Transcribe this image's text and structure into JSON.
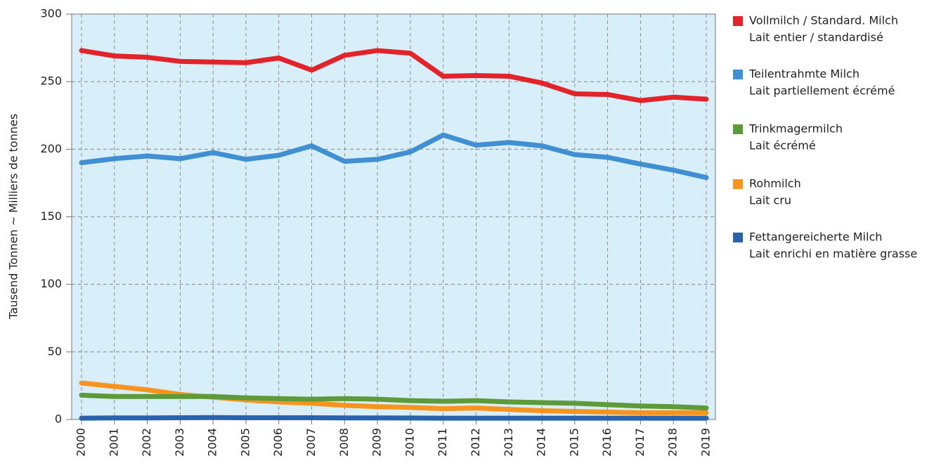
{
  "chart_data": {
    "type": "line",
    "y_label": "Tausend Tonnen  ~  Milliers de tonnes",
    "x": [
      "2000",
      "2001",
      "2002",
      "2003",
      "2004",
      "2005",
      "2006",
      "2007",
      "2008",
      "2009",
      "2010",
      "2011",
      "2012",
      "2013",
      "2014",
      "2015",
      "2016",
      "2017",
      "2018",
      "2019"
    ],
    "series": [
      {
        "name": "Vollmilch / Standard. Milch",
        "name_fr": "Lait entier / standardisé",
        "color": "#e3232a",
        "values": [
          273,
          269,
          268,
          265,
          264.5,
          264,
          267.5,
          258.5,
          269.5,
          273,
          271,
          254,
          254.5,
          254,
          249,
          241,
          240.5,
          236,
          238.5,
          237
        ]
      },
      {
        "name": "Teilentrahmte Milch",
        "name_fr": "Lait partiellement écrémé",
        "color": "#3f8fd2",
        "values": [
          190,
          193,
          195,
          193,
          197.5,
          192.5,
          195.5,
          202.5,
          191,
          192.5,
          198,
          210.5,
          203,
          205,
          202.5,
          196,
          194,
          189,
          184.5,
          179
        ]
      },
      {
        "name": "Trinkmagermilch",
        "name_fr": "Lait écrémé",
        "color": "#5c9a3a",
        "values": [
          18,
          17,
          17,
          17,
          17,
          16,
          15.5,
          15,
          15.5,
          15,
          14,
          13.5,
          14,
          13,
          12.5,
          12,
          11,
          10,
          9.5,
          8.5
        ]
      },
      {
        "name": "Rohmilch",
        "name_fr": "Lait cru",
        "color": "#f7941d",
        "values": [
          27,
          24.5,
          22,
          18.5,
          16.5,
          14.5,
          13,
          12,
          10.5,
          9.5,
          9,
          8,
          8.5,
          7.5,
          6.5,
          6,
          5.5,
          5,
          5,
          5
        ]
      },
      {
        "name": "Fettangereicherte Milch",
        "name_fr": "Lait enrichi en matière grasse",
        "color": "#2a63ad",
        "values": [
          1,
          1.2,
          1.2,
          1.3,
          1.4,
          1.3,
          1.3,
          1.3,
          1.2,
          1.2,
          1.1,
          1,
          1,
          1,
          1,
          1,
          1,
          1,
          1,
          1
        ]
      }
    ],
    "ylim": [
      0,
      300
    ],
    "yticks": [
      0,
      50,
      100,
      150,
      200,
      250,
      300
    ],
    "grid": true,
    "background": "#d8eef8",
    "legend": "right"
  }
}
